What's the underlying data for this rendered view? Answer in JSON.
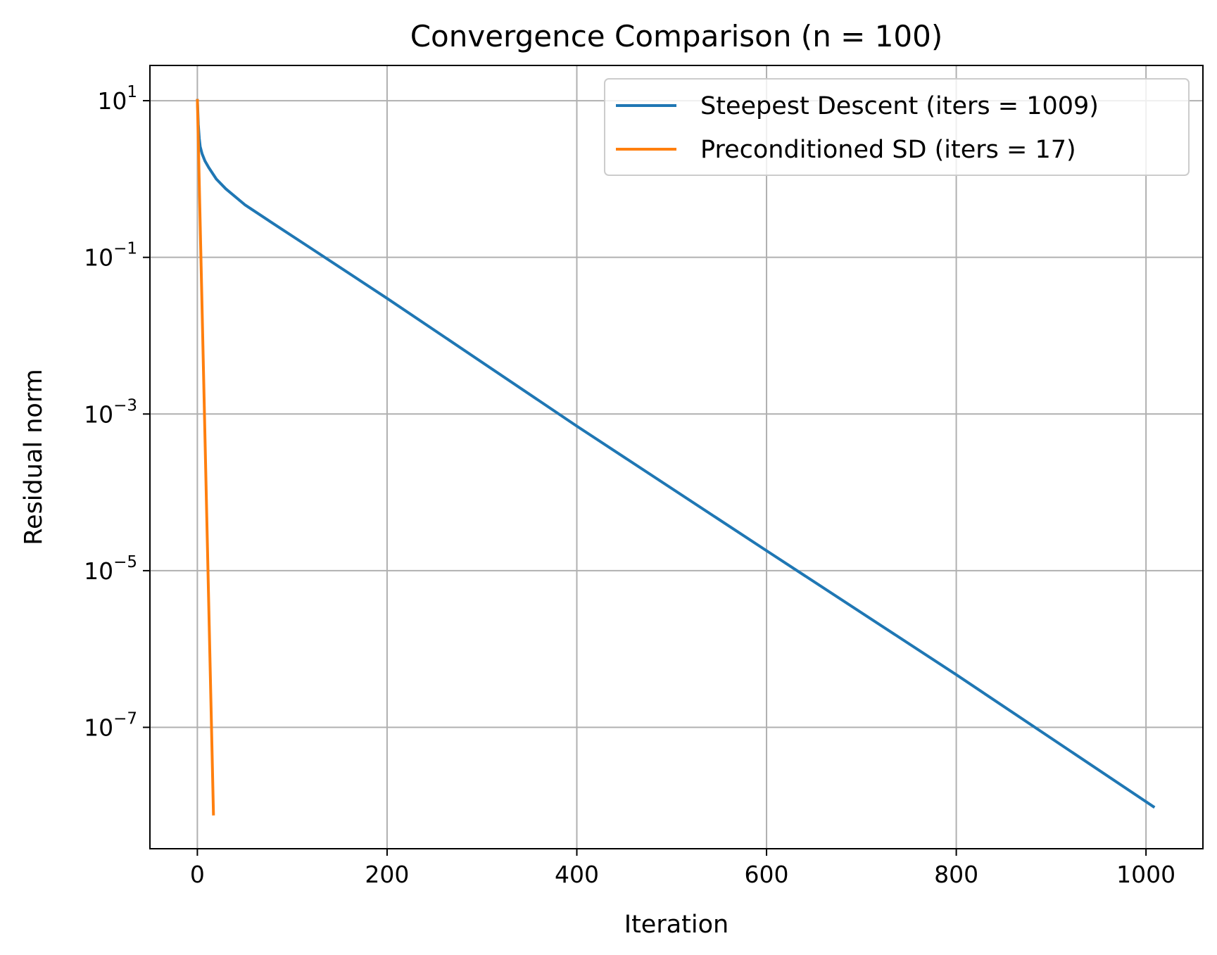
{
  "chart_data": {
    "type": "line",
    "title": "Convergence Comparison (n = 100)",
    "xlabel": "Iteration",
    "ylabel": "Residual norm",
    "xlim": [
      -50,
      1060
    ],
    "ylim_log10": [
      -8.55,
      1.45
    ],
    "y_scale": "log",
    "grid": true,
    "legend_position": "top-right",
    "x_ticks": [
      0,
      200,
      400,
      600,
      800,
      1000
    ],
    "y_ticks": [
      {
        "base": "10",
        "exp": "1",
        "log10": 1
      },
      {
        "base": "10",
        "exp": "−1",
        "log10": -1
      },
      {
        "base": "10",
        "exp": "−3",
        "log10": -3
      },
      {
        "base": "10",
        "exp": "−5",
        "log10": -5
      },
      {
        "base": "10",
        "exp": "−7",
        "log10": -7
      }
    ],
    "series": [
      {
        "name": "Steepest Descent (iters = 1009)",
        "color": "#1f77b4",
        "x": [
          0,
          1,
          2,
          3,
          5,
          8,
          12,
          20,
          30,
          50,
          80,
          120,
          200,
          400,
          600,
          800,
          1009
        ],
        "y": [
          10.5,
          5.0,
          3.3,
          2.6,
          2.1,
          1.7,
          1.4,
          1.0,
          0.75,
          0.47,
          0.27,
          0.13,
          0.03,
          0.0007,
          1.8e-05,
          4.7e-07,
          9.5e-09
        ]
      },
      {
        "name": "Preconditioned SD (iters = 17)",
        "color": "#ff7f0e",
        "x": [
          0,
          17
        ],
        "y": [
          10.5,
          7.5e-09
        ]
      }
    ]
  }
}
